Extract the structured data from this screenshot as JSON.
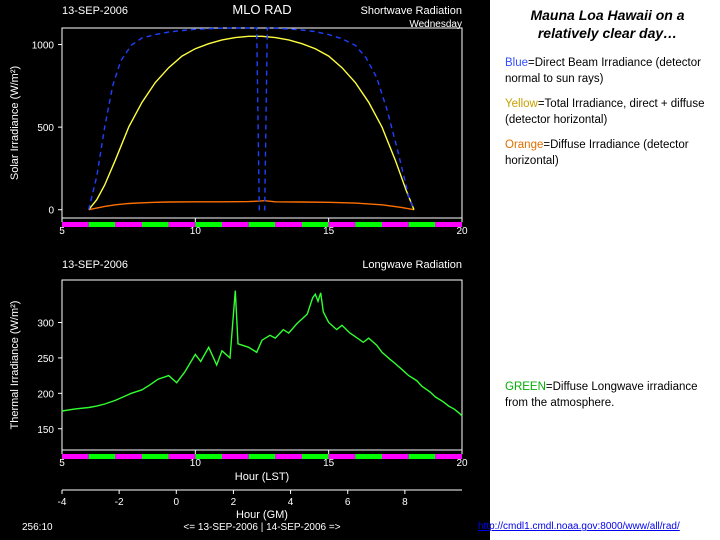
{
  "page": {
    "title": "Mauna Loa Hawaii on a relatively clear day…",
    "url": "http://cmdl1.cmdl.noaa.gov:8000/www/all/rad/"
  },
  "legends": {
    "sw": [
      {
        "label": "Blue",
        "color": "#3050ff",
        "text": "=Direct Beam Irradiance (detector normal to sun rays)"
      },
      {
        "label": "Yellow",
        "color": "#c8a000",
        "text": "=Total Irradiance, direct + diffuse (detector horizontal)"
      },
      {
        "label": "Orange",
        "color": "#e07000",
        "text": "=Diffuse Irradiance (detector horizontal)"
      }
    ],
    "lw": [
      {
        "label": "GREEN",
        "color": "#00b000",
        "text": "=Diffuse Longwave irradiance from the atmosphere."
      }
    ]
  },
  "chart_top": {
    "date": "13-SEP-2006",
    "station": "MLO RAD",
    "subtitle": "Shortwave Radiation",
    "day": "Wednesday",
    "ylabel": "Solar Irradiance (W/m²)",
    "ylim": [
      -50,
      1100
    ],
    "yticks": [
      0,
      500,
      1000
    ],
    "xlim": [
      5,
      20
    ],
    "xticks": [
      5,
      10,
      15,
      20
    ],
    "bg": "#000000",
    "axis_color": "#ffffff",
    "series": {
      "blue": {
        "color": "#2040ff",
        "pts": [
          [
            6.0,
            0
          ],
          [
            6.3,
            200
          ],
          [
            6.6,
            500
          ],
          [
            6.9,
            750
          ],
          [
            7.2,
            900
          ],
          [
            7.6,
            995
          ],
          [
            8.0,
            1040
          ],
          [
            8.5,
            1060
          ],
          [
            9.0,
            1075
          ],
          [
            9.5,
            1085
          ],
          [
            10,
            1092
          ],
          [
            10.5,
            1096
          ],
          [
            11,
            1099
          ],
          [
            11.5,
            1100
          ],
          [
            12,
            1100
          ],
          [
            12.3,
            1100
          ],
          [
            12.4,
            0
          ],
          [
            12.6,
            0
          ],
          [
            12.7,
            1100
          ],
          [
            13,
            1098
          ],
          [
            13.5,
            1094
          ],
          [
            14,
            1088
          ],
          [
            14.5,
            1078
          ],
          [
            15,
            1060
          ],
          [
            15.5,
            1035
          ],
          [
            16,
            995
          ],
          [
            16.4,
            920
          ],
          [
            16.8,
            800
          ],
          [
            17.2,
            600
          ],
          [
            17.6,
            350
          ],
          [
            18.0,
            80
          ],
          [
            18.2,
            0
          ]
        ]
      },
      "yellow": {
        "color": "#ffff40",
        "pts": [
          [
            6.0,
            0
          ],
          [
            6.3,
            60
          ],
          [
            6.6,
            150
          ],
          [
            7.0,
            300
          ],
          [
            7.5,
            500
          ],
          [
            8.0,
            650
          ],
          [
            8.5,
            770
          ],
          [
            9.0,
            860
          ],
          [
            9.5,
            930
          ],
          [
            10,
            975
          ],
          [
            10.5,
            1005
          ],
          [
            11,
            1028
          ],
          [
            11.5,
            1042
          ],
          [
            12,
            1050
          ],
          [
            12.5,
            1050
          ],
          [
            13,
            1042
          ],
          [
            13.5,
            1028
          ],
          [
            14,
            1005
          ],
          [
            14.5,
            975
          ],
          [
            15,
            930
          ],
          [
            15.5,
            860
          ],
          [
            16,
            770
          ],
          [
            16.5,
            650
          ],
          [
            17,
            500
          ],
          [
            17.5,
            300
          ],
          [
            17.9,
            120
          ],
          [
            18.2,
            0
          ]
        ]
      },
      "orange": {
        "color": "#ff7000",
        "pts": [
          [
            6.0,
            0
          ],
          [
            6.3,
            10
          ],
          [
            6.6,
            20
          ],
          [
            7.0,
            30
          ],
          [
            7.5,
            38
          ],
          [
            8.0,
            42
          ],
          [
            8.5,
            45
          ],
          [
            9.0,
            47
          ],
          [
            10,
            48
          ],
          [
            11,
            48
          ],
          [
            12,
            49
          ],
          [
            12.4,
            52
          ],
          [
            12.6,
            55
          ],
          [
            13,
            48
          ],
          [
            14,
            47
          ],
          [
            15,
            45
          ],
          [
            16,
            40
          ],
          [
            17,
            30
          ],
          [
            17.7,
            15
          ],
          [
            18.2,
            0
          ]
        ]
      }
    },
    "segments": {
      "magenta": "#ff00ff",
      "green": "#00ff00",
      "bars": [
        [
          5,
          6,
          "m"
        ],
        [
          6,
          7,
          "g"
        ],
        [
          7,
          8,
          "m"
        ],
        [
          8,
          9,
          "g"
        ],
        [
          9,
          10,
          "m"
        ],
        [
          10,
          11,
          "g"
        ],
        [
          11,
          12,
          "m"
        ],
        [
          12,
          13,
          "g"
        ],
        [
          13,
          14,
          "m"
        ],
        [
          14,
          15,
          "g"
        ],
        [
          15,
          16,
          "m"
        ],
        [
          16,
          17,
          "g"
        ],
        [
          17,
          18,
          "m"
        ],
        [
          18,
          19,
          "g"
        ],
        [
          19,
          20,
          "m"
        ]
      ]
    }
  },
  "chart_bot": {
    "date": "13-SEP-2006",
    "subtitle": "Longwave Radiation",
    "ylabel": "Thermal Irradiance (W/m²)",
    "ylim": [
      120,
      360
    ],
    "yticks": [
      150,
      200,
      250,
      300
    ],
    "xlim_gm": [
      -4,
      10
    ],
    "xticks_gm": [
      -4,
      -2,
      0,
      2,
      4,
      6,
      8
    ],
    "xlabel_top": "Hour (LST)",
    "xlabel_bot": "Hour (GM)",
    "footer_left": "256:10",
    "footer_right": "<= 13-SEP-2006 | 14-SEP-2006 =>",
    "series": {
      "green": {
        "color": "#30ff30",
        "pts": [
          [
            5,
            175
          ],
          [
            5.5,
            178
          ],
          [
            6,
            180
          ],
          [
            6.3,
            182
          ],
          [
            6.6,
            185
          ],
          [
            7,
            190
          ],
          [
            7.3,
            195
          ],
          [
            7.6,
            200
          ],
          [
            8,
            205
          ],
          [
            8.3,
            212
          ],
          [
            8.6,
            220
          ],
          [
            9,
            225
          ],
          [
            9.3,
            215
          ],
          [
            9.6,
            230
          ],
          [
            10,
            255
          ],
          [
            10.2,
            245
          ],
          [
            10.5,
            265
          ],
          [
            10.8,
            240
          ],
          [
            11,
            260
          ],
          [
            11.3,
            250
          ],
          [
            11.5,
            345
          ],
          [
            11.6,
            270
          ],
          [
            12,
            265
          ],
          [
            12.3,
            258
          ],
          [
            12.5,
            275
          ],
          [
            12.8,
            282
          ],
          [
            13,
            278
          ],
          [
            13.3,
            290
          ],
          [
            13.5,
            285
          ],
          [
            13.8,
            298
          ],
          [
            14,
            305
          ],
          [
            14.2,
            312
          ],
          [
            14.4,
            335
          ],
          [
            14.5,
            340
          ],
          [
            14.6,
            330
          ],
          [
            14.7,
            342
          ],
          [
            14.8,
            315
          ],
          [
            15,
            300
          ],
          [
            15.3,
            290
          ],
          [
            15.5,
            296
          ],
          [
            15.8,
            285
          ],
          [
            16,
            280
          ],
          [
            16.3,
            272
          ],
          [
            16.5,
            278
          ],
          [
            16.8,
            268
          ],
          [
            17,
            258
          ],
          [
            17.3,
            248
          ],
          [
            17.5,
            242
          ],
          [
            17.8,
            232
          ],
          [
            18,
            225
          ],
          [
            18.3,
            218
          ],
          [
            18.5,
            210
          ],
          [
            18.8,
            202
          ],
          [
            19,
            195
          ],
          [
            19.3,
            188
          ],
          [
            19.5,
            182
          ],
          [
            19.7,
            178
          ],
          [
            19.9,
            172
          ],
          [
            20,
            168
          ]
        ]
      }
    },
    "segments": {
      "bars": [
        [
          5,
          6,
          "m"
        ],
        [
          6,
          7,
          "g"
        ],
        [
          7,
          8,
          "m"
        ],
        [
          8,
          9,
          "g"
        ],
        [
          9,
          10,
          "m"
        ],
        [
          10,
          11,
          "g"
        ],
        [
          11,
          12,
          "m"
        ],
        [
          12,
          13,
          "g"
        ],
        [
          13,
          14,
          "m"
        ],
        [
          14,
          15,
          "g"
        ],
        [
          15,
          16,
          "m"
        ],
        [
          16,
          17,
          "g"
        ],
        [
          17,
          18,
          "m"
        ],
        [
          18,
          19,
          "g"
        ],
        [
          19,
          20,
          "m"
        ]
      ]
    }
  }
}
